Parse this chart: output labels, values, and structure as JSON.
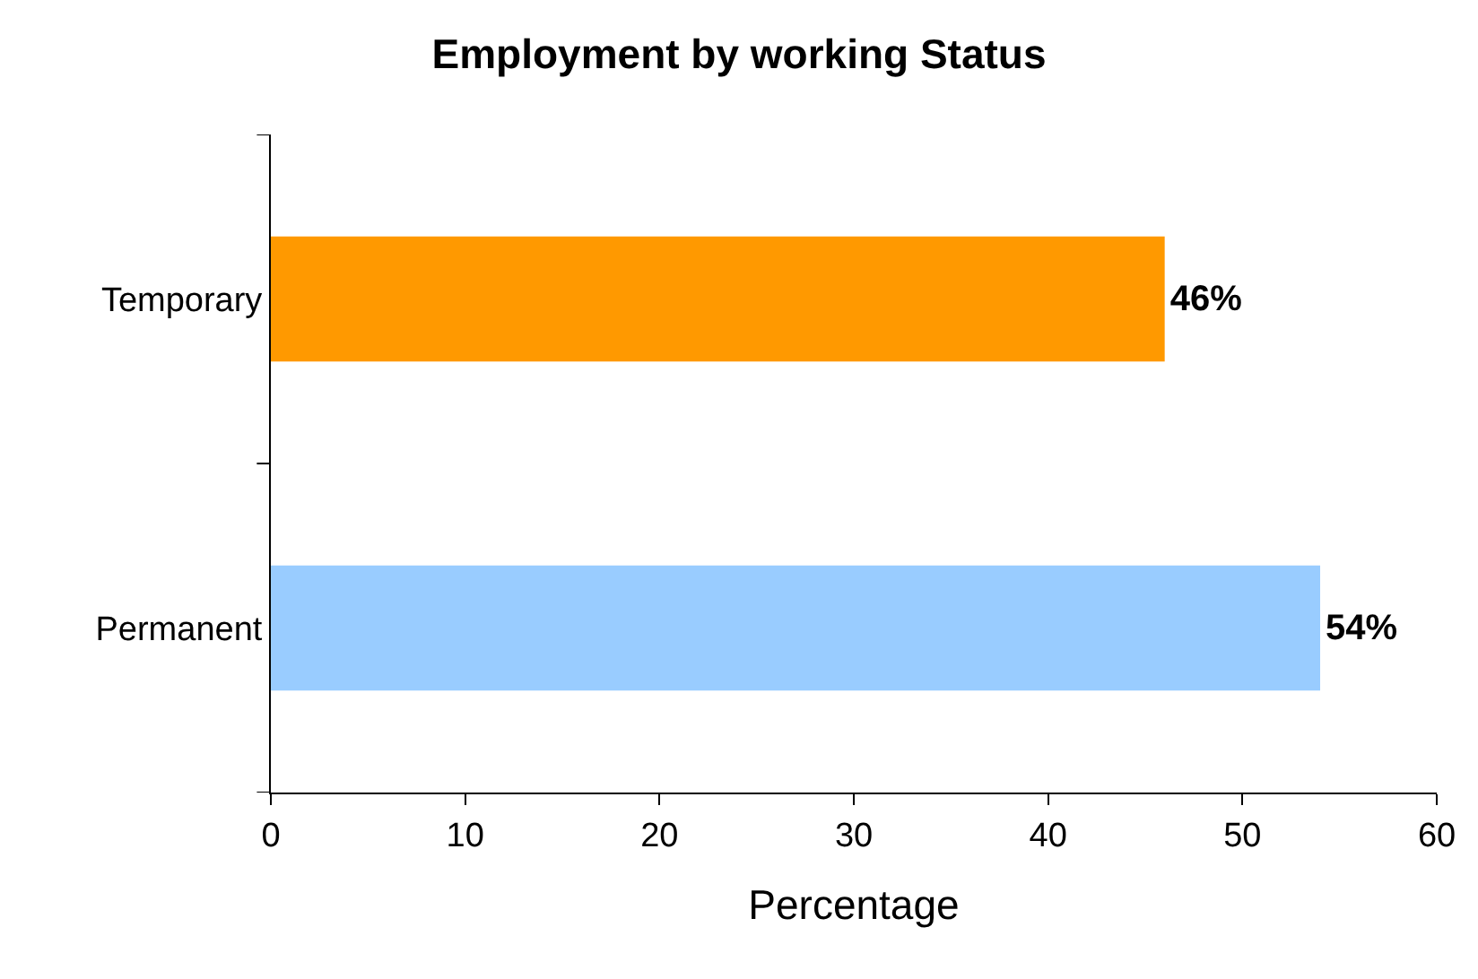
{
  "chart_data": {
    "type": "bar",
    "orientation": "horizontal",
    "title": "Employment by working Status",
    "xlabel": "Percentage",
    "categories": [
      "Temporary",
      "Permanent"
    ],
    "values": [
      46,
      54
    ],
    "colors": [
      "#ff9900",
      "#99ccff"
    ],
    "value_labels": [
      "46%",
      "54%"
    ],
    "xlim": [
      0,
      60
    ],
    "xticks": [
      0,
      10,
      20,
      30,
      40,
      50,
      60
    ]
  }
}
